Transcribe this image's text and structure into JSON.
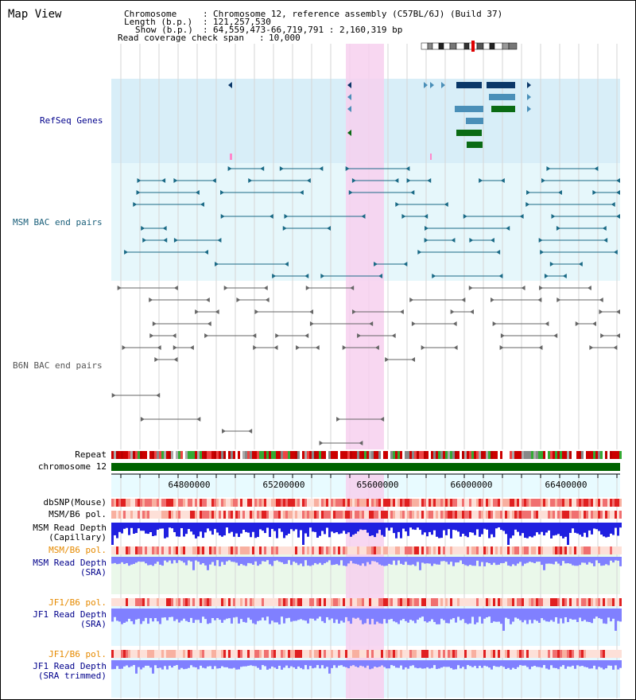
{
  "page": {
    "title": "Map View"
  },
  "info": {
    "chromosome_label": "Chromosome",
    "chromosome_value": "Chromosome 12, reference assembly (C57BL/6J) (Build 37)",
    "length_label": "Length (b.p.)",
    "length_value": "121,257,530",
    "show_label": "Show (b.p.)",
    "show_value": "64,559,473-66,719,791 : 2,160,319 bp",
    "coverage_label": "Read coverage check span",
    "coverage_value": "10,000"
  },
  "tracks": {
    "refseq": "RefSeq Genes",
    "msm_bac": "MSM BAC end pairs",
    "b6n_bac": "B6N BAC end pairs",
    "repeat": "Repeat",
    "chromosome": "chromosome 12",
    "dbsnp": "dbSNP(Mouse)",
    "msm_pol_1": "MSM/B6 pol.",
    "msm_depth_cap_1": "MSM Read Depth",
    "msm_depth_cap_2": "(Capillary)",
    "msm_pol_2": "MSM/B6 pol.",
    "msm_depth_sra_1": "MSM Read Depth",
    "msm_depth_sra_2": "(SRA)",
    "jf1_pol_1": "JF1/B6 pol.",
    "jf1_depth_sra_1": "JF1 Read Depth",
    "jf1_depth_sra_2": "(SRA)",
    "jf1_pol_2": "JF1/B6 pol.",
    "jf1_depth_trim_1": "JF1 Read Depth",
    "jf1_depth_trim_2": "(SRA trimmed)"
  },
  "ruler": {
    "ticks": [
      "64800000",
      "65200000",
      "65600000",
      "66000000",
      "66400000"
    ]
  },
  "colors": {
    "refseq_bg": "#d8eef8",
    "msm_bg": "#e6f7fb",
    "b6n_bg": "#f4f4f4",
    "highlight": "#f7d0ee",
    "chromosome_bar": "#006400",
    "gene_dark": "#0a3768",
    "gene_mid": "#4a8fb8",
    "gene_green": "#0a6b14",
    "msm_line": "#1a6a86",
    "b6n_line": "#666666",
    "depth_blue": "#2020e0",
    "depth_light": "#8080ff"
  }
}
